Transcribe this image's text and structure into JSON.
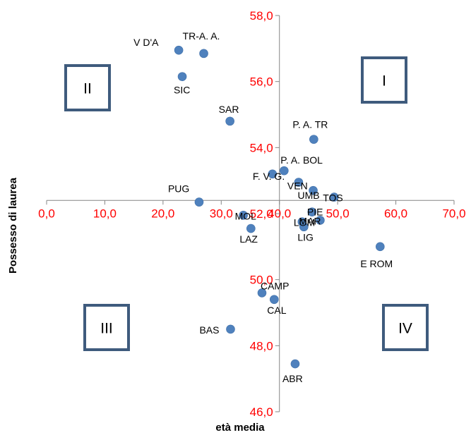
{
  "chart_data": {
    "type": "scatter",
    "title": "",
    "xlabel": "età media",
    "ylabel": "Possesso di laurea",
    "xlim": [
      0,
      70
    ],
    "ylim": [
      46,
      58
    ],
    "x_ticks": [
      "0,0",
      "10,0",
      "20,0",
      "30,0",
      "40,0",
      "50,0",
      "60,0",
      "70,0"
    ],
    "y_ticks": [
      "46,0",
      "48,0",
      "50,0",
      "52,0",
      "54,0",
      "56,0",
      "58,0"
    ],
    "x_axis_crosses_y": 52.4,
    "y_axis_crosses_x": 40,
    "grid": false,
    "point_color": "#4f81bd",
    "tick_color": "#ff0000",
    "points": [
      {
        "label": "V D'A",
        "x": 22.7,
        "y": 56.95
      },
      {
        "label": "TR-A. A.",
        "x": 27.0,
        "y": 56.85
      },
      {
        "label": "SIC",
        "x": 23.3,
        "y": 56.15
      },
      {
        "label": "SAR",
        "x": 31.5,
        "y": 54.8
      },
      {
        "label": "P. A. TR",
        "x": 45.9,
        "y": 54.25
      },
      {
        "label": "P. A. BOL",
        "x": 40.8,
        "y": 53.3
      },
      {
        "label": "F. V. G.",
        "x": 38.8,
        "y": 53.2
      },
      {
        "label": "VEN",
        "x": 43.3,
        "y": 52.95
      },
      {
        "label": "UMB",
        "x": 45.8,
        "y": 52.7
      },
      {
        "label": "TOS",
        "x": 49.4,
        "y": 52.5
      },
      {
        "label": "PUG",
        "x": 26.2,
        "y": 52.35
      },
      {
        "label": "MOL",
        "x": 33.8,
        "y": 51.95
      },
      {
        "label": "PIE",
        "x": 45.6,
        "y": 52.05
      },
      {
        "label": "MAR",
        "x": 47.0,
        "y": 51.8
      },
      {
        "label": "LOM",
        "x": 43.9,
        "y": 51.75
      },
      {
        "label": "LIG",
        "x": 44.2,
        "y": 51.6
      },
      {
        "label": "LAZ",
        "x": 35.1,
        "y": 51.55
      },
      {
        "label": "E ROM",
        "x": 57.3,
        "y": 51.0
      },
      {
        "label": "CAMP",
        "x": 37.0,
        "y": 49.6
      },
      {
        "label": "CAL",
        "x": 39.1,
        "y": 49.4
      },
      {
        "label": "BAS",
        "x": 31.6,
        "y": 48.5
      },
      {
        "label": "ABR",
        "x": 42.7,
        "y": 47.45
      }
    ],
    "quadrants": [
      {
        "label": "I"
      },
      {
        "label": "II"
      },
      {
        "label": "III"
      },
      {
        "label": "IV"
      }
    ]
  }
}
